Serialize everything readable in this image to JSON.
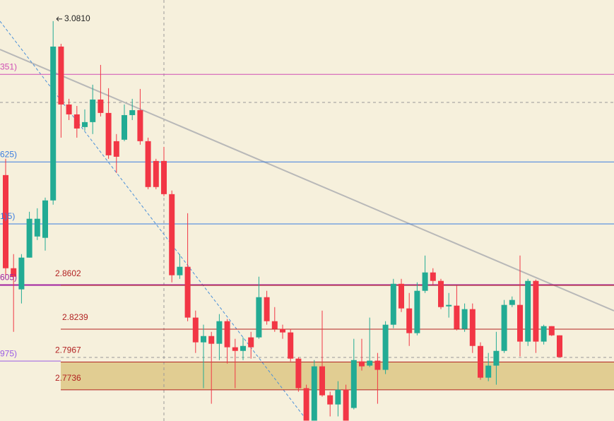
{
  "chart_data": {
    "type": "candlestick",
    "ylim": [
      2.7478,
      3.0967
    ],
    "up_color": "#22ab94",
    "down_color": "#f23645",
    "open": [
      2.9516,
      2.8744,
      2.8569,
      2.8832,
      2.9007,
      2.8996,
      2.9306,
      3.0581,
      3.0101,
      3.0019,
      2.9914,
      2.9955,
      3.0142,
      3.0031,
      2.9797,
      2.9809,
      3.0013,
      3.0054,
      2.9797,
      2.9633,
      2.9633,
      2.9358,
      2.8686,
      2.8756,
      2.8335,
      2.813,
      2.8182,
      2.8118,
      2.8305,
      2.8089,
      2.8059,
      2.8171,
      2.8171,
      2.8504,
      2.8305,
      2.8241,
      2.8212,
      2.7995,
      2.775,
      2.7481,
      2.7931,
      2.7691,
      2.7615,
      2.7738,
      2.7586,
      2.7972,
      2.7937,
      2.7978,
      2.7902,
      2.8276,
      2.8615,
      2.8411,
      2.8206,
      2.8557,
      2.8709,
      2.8639,
      2.8428,
      2.8434,
      2.8241,
      2.8405,
      2.81,
      2.7837,
      2.7937,
      2.8059,
      2.844,
      2.844,
      2.8136,
      2.8639,
      2.8136,
      2.8264,
      2.8188
    ],
    "high": [
      2.9651,
      2.8861,
      2.8861,
      2.9212,
      2.9241,
      2.9329,
      3.0792,
      3.0604,
      3.0148,
      3.0089,
      3.006,
      3.0265,
      3.0429,
      3.0236,
      2.9856,
      3.0101,
      3.0148,
      3.023,
      2.9826,
      2.9651,
      2.975,
      2.9388,
      2.8861,
      2.92,
      2.8393,
      2.8276,
      2.8217,
      2.8364,
      2.8323,
      2.8159,
      2.8171,
      2.8217,
      2.8674,
      2.8557,
      2.8422,
      2.8276,
      2.8241,
      2.8007,
      2.7779,
      2.7983,
      2.8393,
      2.7721,
      2.7808,
      2.7779,
      2.8159,
      2.8159,
      2.8335,
      2.8042,
      2.8305,
      2.8656,
      2.8656,
      2.8539,
      2.8627,
      2.8849,
      2.8744,
      2.8656,
      2.8539,
      2.8598,
      2.8452,
      2.8452,
      2.813,
      2.8042,
      2.8217,
      2.8481,
      2.851,
      2.8849,
      2.8656,
      2.865,
      2.8276,
      2.8264,
      2.8188
    ],
    "low": [
      2.8686,
      2.8217,
      2.8452,
      2.8832,
      2.8978,
      2.889,
      2.9271,
      2.9826,
      2.9972,
      2.9826,
      2.9885,
      2.9856,
      3.0002,
      2.9651,
      2.9534,
      2.9797,
      2.9972,
      2.9768,
      2.9399,
      2.9399,
      2.9341,
      2.8627,
      2.8656,
      2.8305,
      2.8042,
      2.775,
      2.7621,
      2.7983,
      2.7954,
      2.775,
      2.7983,
      2.7995,
      2.8159,
      2.8276,
      2.8217,
      2.8159,
      2.7972,
      2.7721,
      2.7481,
      2.7481,
      2.768,
      2.7516,
      2.7516,
      2.7481,
      2.7574,
      2.7896,
      2.7925,
      2.7621,
      2.7867,
      2.8247,
      2.8381,
      2.81,
      2.8188,
      2.8539,
      2.8609,
      2.8405,
      2.8335,
      2.8229,
      2.8217,
      2.8042,
      2.782,
      2.7808,
      2.7779,
      2.8042,
      2.8422,
      2.8013,
      2.81,
      2.8042,
      2.8112,
      2.8182,
      2.8007
    ],
    "close": [
      2.8744,
      2.8674,
      2.8832,
      2.9154,
      2.9154,
      2.9306,
      3.0581,
      3.0101,
      3.0019,
      2.9902,
      2.9955,
      3.0142,
      3.0031,
      2.968,
      2.9668,
      3.0013,
      3.0054,
      2.9797,
      2.9417,
      2.9417,
      2.9358,
      2.8686,
      2.8756,
      2.8335,
      2.813,
      2.8182,
      2.8118,
      2.8305,
      2.8089,
      2.8059,
      2.81,
      2.8089,
      2.8504,
      2.8305,
      2.8241,
      2.8212,
      2.7995,
      2.775,
      2.7481,
      2.7931,
      2.7691,
      2.7615,
      2.7738,
      2.7481,
      2.7983,
      2.7931,
      2.7978,
      2.7902,
      2.8276,
      2.8615,
      2.8411,
      2.8206,
      2.8557,
      2.8709,
      2.8639,
      2.8422,
      2.844,
      2.8241,
      2.8405,
      2.81,
      2.7837,
      2.7937,
      2.8059,
      2.844,
      2.8481,
      2.8136,
      2.8639,
      2.8136,
      2.8264,
      2.8188,
      2.8007
    ],
    "levels": [
      2.8602,
      2.8239,
      2.7967,
      2.7736
    ],
    "level_color": "#b22222",
    "zone": [
      2.7967,
      2.7736
    ],
    "zone_color": "#d9c27a",
    "edge_levels": [
      {
        "value": 3.0351,
        "label": "351)",
        "color": "#d04fb5"
      },
      {
        "value": 2.9625,
        "label": "625)",
        "color": "#3b7de0"
      },
      {
        "value": 2.9111,
        "label": "1)5)",
        "color": "#3b7de0"
      },
      {
        "value": 2.8605,
        "label": "605)",
        "color": "#a020a0"
      },
      {
        "value": 2.7975,
        "label": "975)",
        "color": "#9b5de5"
      }
    ],
    "annotations": [
      {
        "value": 3.081,
        "label": "3.0810"
      }
    ]
  }
}
